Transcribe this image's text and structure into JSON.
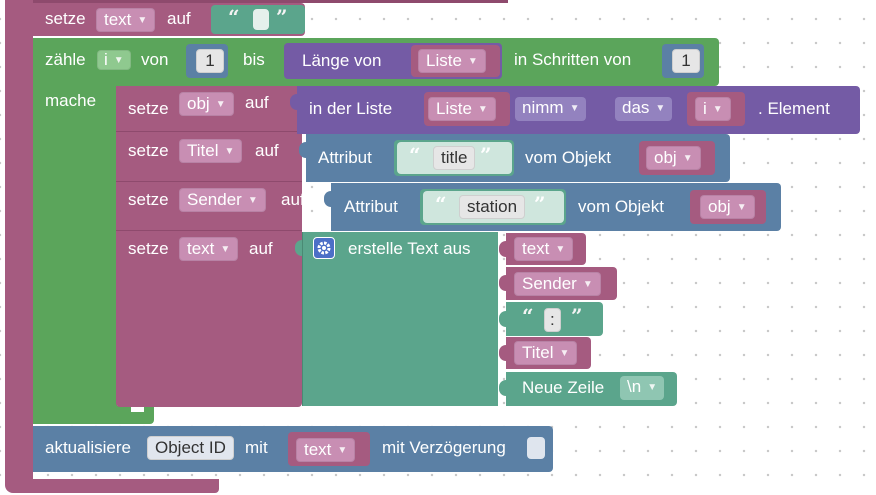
{
  "colors": {
    "variables": "#a55b80",
    "variable_field": "#c88eb3",
    "loops": "#5ba55b",
    "lists": "#745ba5",
    "text": "#5ba58c",
    "objects": "#5b80a5",
    "canvas": "#ffffff"
  },
  "block1": {
    "setze": "setze",
    "var": "text",
    "auf": "auf",
    "q_open": "“",
    "q_close": "”"
  },
  "loop": {
    "zaehle": "zähle",
    "var": "i",
    "von": "von",
    "from": "1",
    "bis": "bis",
    "laenge_von": "Länge von",
    "list": "Liste",
    "in_schritten_von": "in Schritten von",
    "step": "1",
    "mache": "mache"
  },
  "set_obj": {
    "setze": "setze",
    "var": "obj",
    "auf": "auf",
    "in_der_liste": "in der Liste",
    "list": "Liste",
    "mode": "nimm",
    "where": "das",
    "index": "i",
    "element": ". Element"
  },
  "set_titel": {
    "setze": "setze",
    "var": "Titel",
    "auf": "auf",
    "attribut": "Attribut",
    "attr": "title",
    "vom_objekt": "vom Objekt",
    "obj": "obj"
  },
  "set_sender": {
    "setze": "setze",
    "var": "Sender",
    "auf": "auf",
    "attribut": "Attribut",
    "attr": "station",
    "vom_objekt": "vom Objekt",
    "obj": "obj"
  },
  "set_text": {
    "setze": "setze",
    "var": "text",
    "auf": "auf",
    "erstelle": "erstelle Text aus",
    "items": {
      "i1": "text",
      "i2": "Sender",
      "i3": ":",
      "i4": "Titel",
      "i5_label": "Neue Zeile",
      "i5_value": "\\n"
    }
  },
  "update": {
    "label": "aktualisiere",
    "object_id": "Object ID",
    "mit": "mit",
    "var": "text",
    "delay": "mit Verzögerung"
  },
  "icons": {
    "gear": "gear-icon",
    "dropdown": "dropdown-arrow-icon"
  }
}
